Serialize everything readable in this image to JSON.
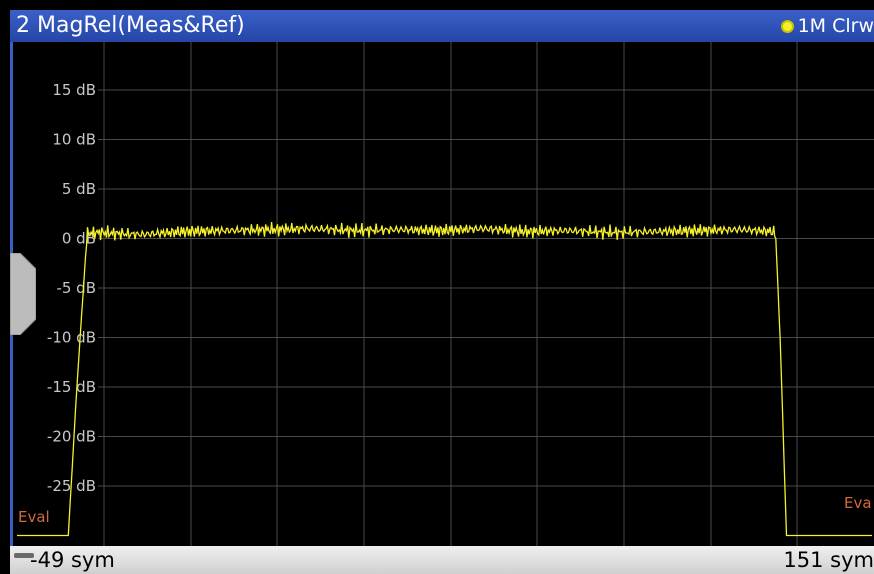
{
  "window": {
    "title": "2 MagRel(Meas&Ref)",
    "trace_label": "1M Clrw",
    "trace_color": "#f5f22a"
  },
  "annotations": {
    "eval_left": "Eval",
    "eval_right": "Eva"
  },
  "x_axis": {
    "start_label": "-49 sym",
    "stop_label": "151 sym"
  },
  "chart_data": {
    "type": "line",
    "title": "2 MagRel(Meas&Ref)",
    "xlabel": "",
    "ylabel": "",
    "xlim": [
      -49,
      151
    ],
    "ylim": [
      -30,
      19
    ],
    "y_ticks": [
      15,
      10,
      5,
      0,
      -5,
      -10,
      -15,
      -20,
      -25
    ],
    "y_tick_labels": [
      "15 dB",
      "10 dB",
      "5 dB",
      "0 dB",
      "-5 dB",
      "-10 dB",
      "-15 dB",
      "-20 dB",
      "-25 dB"
    ],
    "grid": true,
    "series": [
      {
        "name": "1M Clrw",
        "color": "#f5f22a",
        "x": [
          -49,
          -37,
          -35,
          -33,
          -32.5,
          -30,
          -20,
          -10,
          0,
          10,
          20,
          30,
          40,
          50,
          60,
          70,
          80,
          90,
          100,
          110,
          120,
          128,
          128.5,
          129.5,
          131,
          151
        ],
        "y": [
          -30,
          -30,
          -15,
          -2,
          0.5,
          0.6,
          0.4,
          0.7,
          0.8,
          0.9,
          1.0,
          0.8,
          0.9,
          0.8,
          1.0,
          0.7,
          0.8,
          0.6,
          0.7,
          0.8,
          0.9,
          0.7,
          0.0,
          -10,
          -30,
          -30
        ]
      }
    ]
  }
}
